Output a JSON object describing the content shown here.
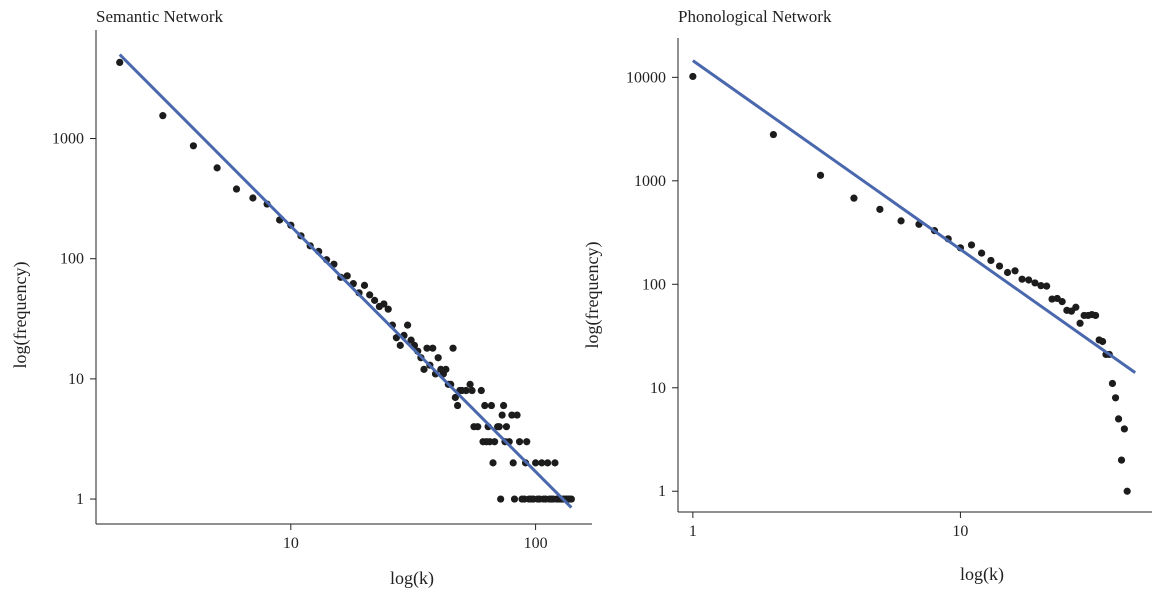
{
  "colors": {
    "fit_line": "#4a68ad",
    "points": "#1c1c1c",
    "axis": "#222222"
  },
  "chart_data": [
    {
      "type": "scatter",
      "title": "Semantic Network",
      "xlabel": "log(k)",
      "ylabel": "log(frequency)",
      "x_scale": "log",
      "y_scale": "log",
      "xlim": [
        1.6,
        170
      ],
      "ylim": [
        0.62,
        8000
      ],
      "x_ticks": [
        {
          "value": 10,
          "label": "10"
        },
        {
          "value": 100,
          "label": "100"
        }
      ],
      "y_ticks": [
        {
          "value": 1,
          "label": "1"
        },
        {
          "value": 10,
          "label": "10"
        },
        {
          "value": 100,
          "label": "100"
        },
        {
          "value": 1000,
          "label": "1000"
        }
      ],
      "grid": false,
      "fit_line": {
        "x": [
          2,
          140
        ],
        "y": [
          5000,
          0.85
        ]
      },
      "points": [
        [
          2,
          4300
        ],
        [
          3,
          1550
        ],
        [
          4,
          870
        ],
        [
          5,
          570
        ],
        [
          6,
          380
        ],
        [
          7,
          320
        ],
        [
          8,
          285
        ],
        [
          9,
          210
        ],
        [
          10,
          190
        ],
        [
          11,
          155
        ],
        [
          12,
          128
        ],
        [
          13,
          115
        ],
        [
          14,
          98
        ],
        [
          15,
          90
        ],
        [
          16,
          70
        ],
        [
          17,
          72
        ],
        [
          18,
          62
        ],
        [
          19,
          52
        ],
        [
          20,
          60
        ],
        [
          21,
          50
        ],
        [
          22,
          45
        ],
        [
          23,
          40
        ],
        [
          24,
          42
        ],
        [
          25,
          38
        ],
        [
          26,
          28
        ],
        [
          27,
          22
        ],
        [
          28,
          19
        ],
        [
          29,
          23
        ],
        [
          30,
          28
        ],
        [
          31,
          21
        ],
        [
          32,
          19
        ],
        [
          33,
          17
        ],
        [
          34,
          15
        ],
        [
          35,
          12
        ],
        [
          36,
          18
        ],
        [
          37,
          13
        ],
        [
          38,
          18
        ],
        [
          39,
          11
        ],
        [
          40,
          15
        ],
        [
          41,
          12
        ],
        [
          42,
          11
        ],
        [
          43,
          12
        ],
        [
          44,
          9
        ],
        [
          45,
          9
        ],
        [
          46,
          18
        ],
        [
          47,
          7
        ],
        [
          48,
          6
        ],
        [
          49,
          8
        ],
        [
          50,
          8
        ],
        [
          52,
          8
        ],
        [
          54,
          9
        ],
        [
          55,
          8
        ],
        [
          56,
          4
        ],
        [
          58,
          4
        ],
        [
          60,
          8
        ],
        [
          61,
          3
        ],
        [
          62,
          6
        ],
        [
          63,
          3
        ],
        [
          64,
          4
        ],
        [
          65,
          3
        ],
        [
          66,
          6
        ],
        [
          67,
          2
        ],
        [
          68,
          3
        ],
        [
          70,
          4
        ],
        [
          71,
          4
        ],
        [
          72,
          1
        ],
        [
          73,
          5
        ],
        [
          74,
          6
        ],
        [
          75,
          3
        ],
        [
          76,
          4
        ],
        [
          78,
          3
        ],
        [
          80,
          5
        ],
        [
          81,
          2
        ],
        [
          82,
          1
        ],
        [
          84,
          5
        ],
        [
          86,
          3
        ],
        [
          88,
          1
        ],
        [
          90,
          1
        ],
        [
          91,
          2
        ],
        [
          92,
          3
        ],
        [
          94,
          1
        ],
        [
          96,
          1
        ],
        [
          98,
          1
        ],
        [
          100,
          2
        ],
        [
          102,
          1
        ],
        [
          104,
          1
        ],
        [
          106,
          2
        ],
        [
          108,
          1
        ],
        [
          110,
          1
        ],
        [
          112,
          2
        ],
        [
          114,
          1
        ],
        [
          116,
          1
        ],
        [
          118,
          1
        ],
        [
          120,
          2
        ],
        [
          122,
          1
        ],
        [
          124,
          1
        ],
        [
          126,
          1
        ],
        [
          128,
          1
        ],
        [
          130,
          1
        ],
        [
          132,
          1
        ],
        [
          134,
          1
        ],
        [
          136,
          1
        ],
        [
          138,
          1
        ],
        [
          140,
          1
        ]
      ]
    },
    {
      "type": "scatter",
      "title": "Phonological Network",
      "xlabel": "log(k)",
      "ylabel": "log(frequency)",
      "x_scale": "log",
      "y_scale": "log",
      "xlim": [
        0.88,
        52
      ],
      "ylim": [
        0.63,
        24000
      ],
      "x_ticks": [
        {
          "value": 1,
          "label": "1"
        },
        {
          "value": 10,
          "label": "10"
        }
      ],
      "y_ticks": [
        {
          "value": 1,
          "label": "1"
        },
        {
          "value": 10,
          "label": "10"
        },
        {
          "value": 100,
          "label": "100"
        },
        {
          "value": 1000,
          "label": "1000"
        },
        {
          "value": 10000,
          "label": "10000"
        }
      ],
      "grid": false,
      "fit_line": {
        "x": [
          1,
          45
        ],
        "y": [
          14500,
          14
        ]
      },
      "points": [
        [
          1,
          10200
        ],
        [
          2,
          2800
        ],
        [
          3,
          1130
        ],
        [
          4,
          680
        ],
        [
          5,
          530
        ],
        [
          6,
          410
        ],
        [
          7,
          380
        ],
        [
          8,
          330
        ],
        [
          9,
          275
        ],
        [
          10,
          225
        ],
        [
          11,
          240
        ],
        [
          12,
          200
        ],
        [
          13,
          170
        ],
        [
          14,
          150
        ],
        [
          15,
          130
        ],
        [
          16,
          135
        ],
        [
          17,
          112
        ],
        [
          18,
          110
        ],
        [
          19,
          103
        ],
        [
          20,
          97
        ],
        [
          21,
          96
        ],
        [
          22,
          72
        ],
        [
          23,
          73
        ],
        [
          24,
          68
        ],
        [
          25,
          56
        ],
        [
          26,
          55
        ],
        [
          27,
          60
        ],
        [
          28,
          42
        ],
        [
          29,
          50
        ],
        [
          30,
          50
        ],
        [
          31,
          51
        ],
        [
          32,
          50
        ],
        [
          33,
          29
        ],
        [
          34,
          28
        ],
        [
          35,
          21
        ],
        [
          36,
          21
        ],
        [
          37,
          11
        ],
        [
          38,
          8
        ],
        [
          39,
          5
        ],
        [
          41,
          4
        ],
        [
          40,
          2
        ],
        [
          42,
          1
        ]
      ]
    }
  ]
}
